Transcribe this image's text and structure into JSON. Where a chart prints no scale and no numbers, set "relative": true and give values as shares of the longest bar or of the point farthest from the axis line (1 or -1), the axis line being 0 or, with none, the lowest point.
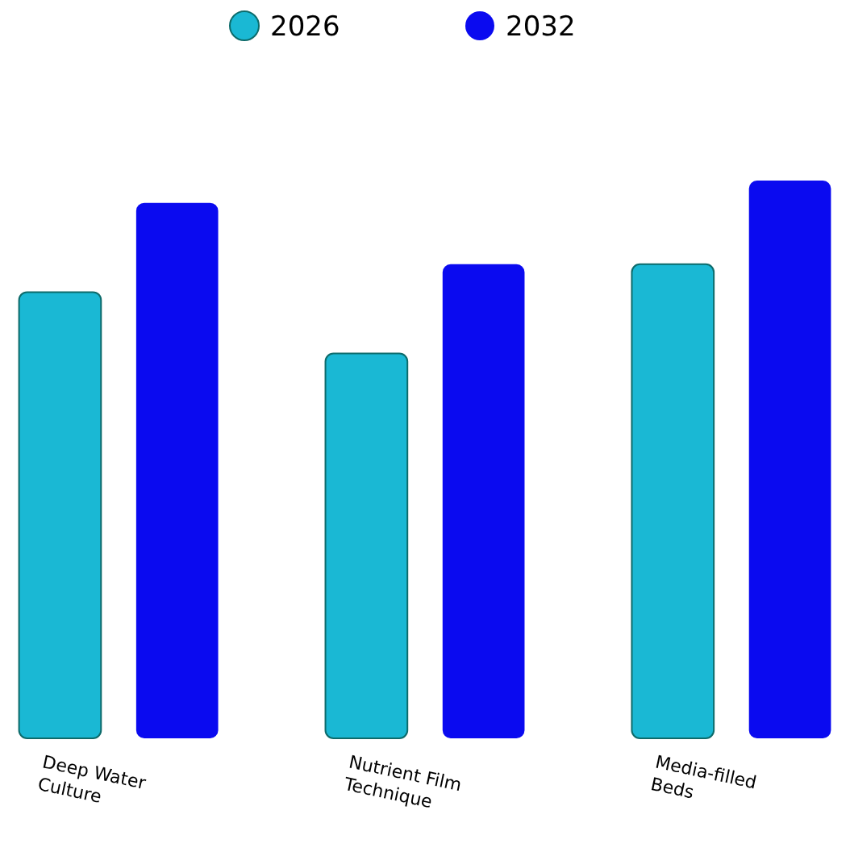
{
  "chart_data": {
    "type": "bar",
    "relative": true,
    "legend": "top",
    "categories": [
      "Deep Water Culture",
      "Nutrient Film Technique",
      "Media-filled Beds"
    ],
    "series": [
      {
        "name": "2026",
        "color": "#1ab8d4",
        "values": [
          0.8,
          0.69,
          0.85
        ]
      },
      {
        "name": "2032",
        "color": "#0a0af0",
        "values": [
          0.96,
          0.85,
          1
        ]
      }
    ]
  }
}
